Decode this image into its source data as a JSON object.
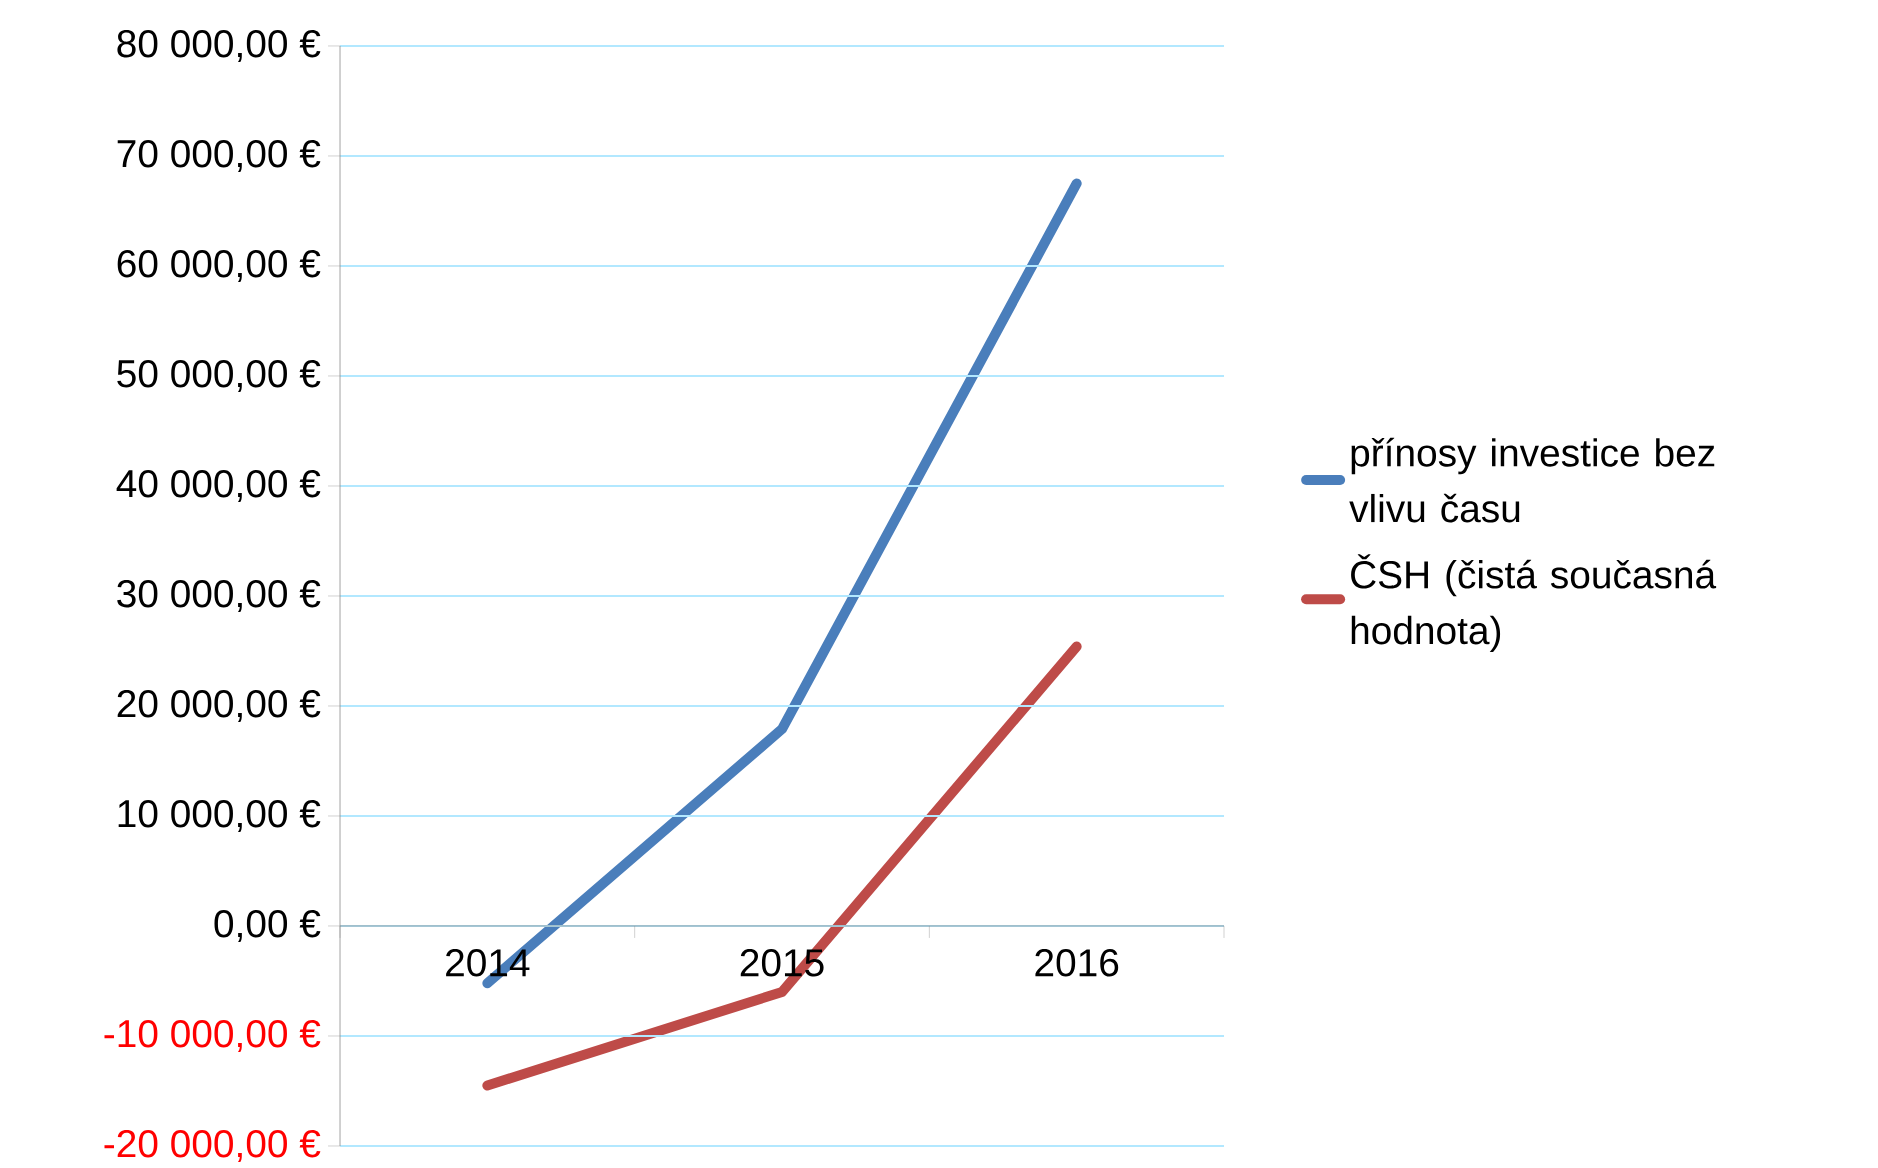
{
  "chart_data": {
    "type": "line",
    "categories": [
      "2014",
      "2015",
      "2016"
    ],
    "series": [
      {
        "name": "přínosy investice bez vlivu času",
        "color": "#4a7ebb",
        "values": [
          -5200,
          17900,
          67500
        ]
      },
      {
        "name": "ČSH (čistá současná hodnota)",
        "color": "#be4b48",
        "values": [
          -14500,
          -6000,
          25400
        ]
      }
    ],
    "ylim": [
      -20000,
      80000
    ],
    "yticks": [
      {
        "value": -20000,
        "label": "-20 000,00 €"
      },
      {
        "value": -10000,
        "label": "-10 000,00 €"
      },
      {
        "value": 0,
        "label": "0,00 €"
      },
      {
        "value": 10000,
        "label": "10 000,00 €"
      },
      {
        "value": 20000,
        "label": "20 000,00 €"
      },
      {
        "value": 30000,
        "label": "30 000,00 €"
      },
      {
        "value": 40000,
        "label": "40 000,00 €"
      },
      {
        "value": 50000,
        "label": "50 000,00 €"
      },
      {
        "value": 60000,
        "label": "60 000,00 €"
      },
      {
        "value": 70000,
        "label": "70 000,00 €"
      },
      {
        "value": 80000,
        "label": "80 000,00 €"
      }
    ],
    "grid": "y",
    "legend": "right",
    "marker": "none",
    "line_style": "solid"
  }
}
